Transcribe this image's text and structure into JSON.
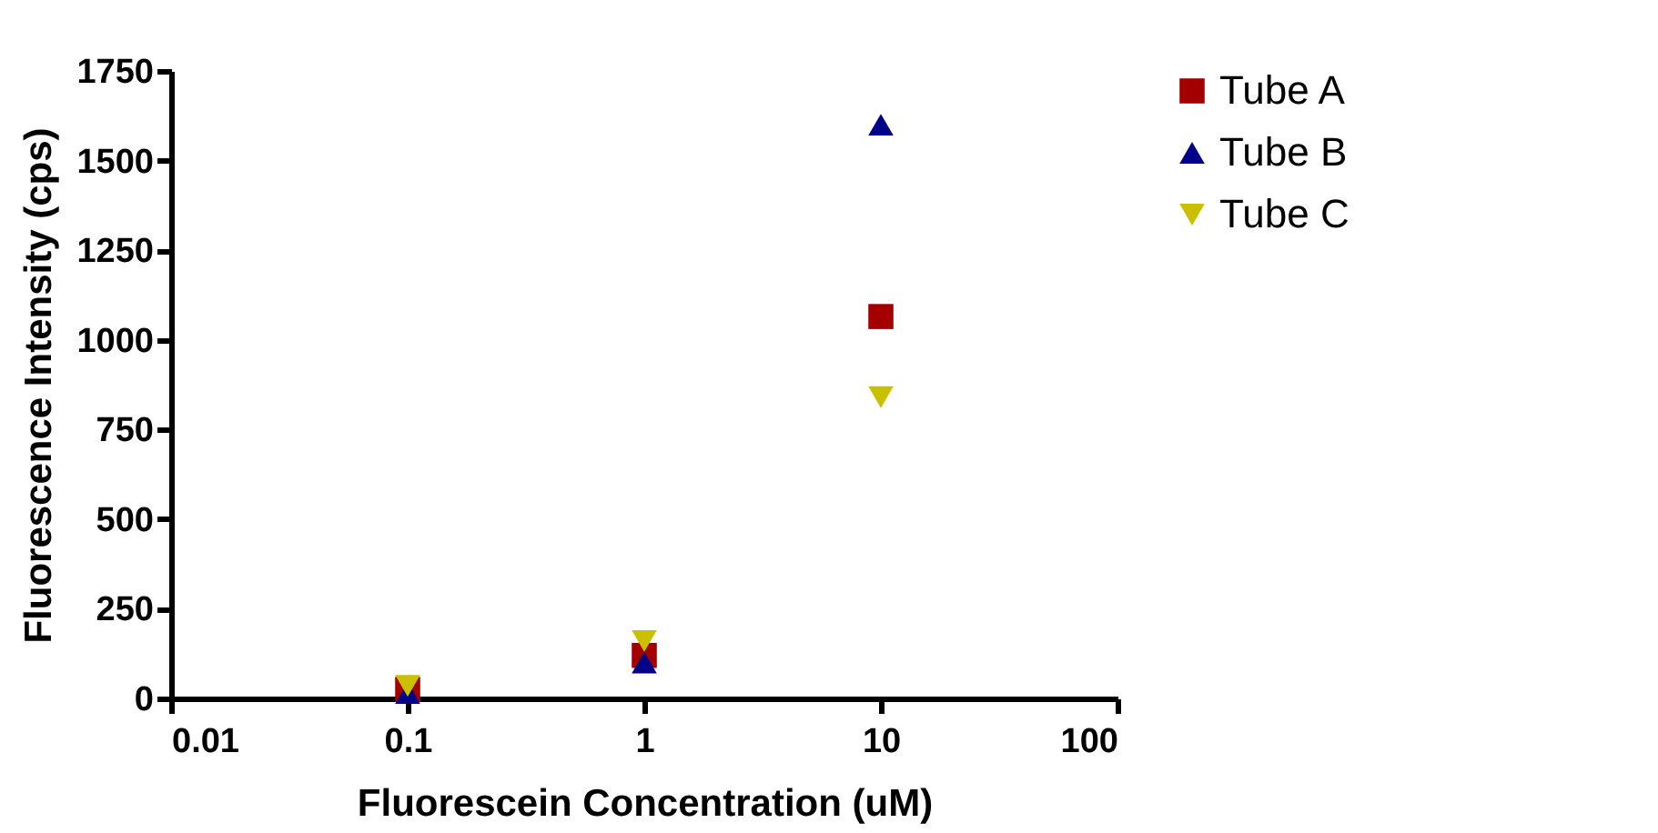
{
  "chart_data": {
    "type": "scatter",
    "xlabel": "Fluorescein Concentration (uM)",
    "ylabel": "Fluorescence Intensity (cps)",
    "x": [
      0.1,
      1,
      10
    ],
    "log": "x",
    "xlim": [
      0.01,
      100
    ],
    "xticks": [
      0.01,
      0.1,
      1,
      10,
      100
    ],
    "ylim": [
      0,
      1750
    ],
    "yticks": [
      0,
      250,
      500,
      750,
      1000,
      1250,
      1500,
      1750
    ],
    "grid": false,
    "legend": "top right",
    "series": [
      {
        "name": "Tube A",
        "color": "#a50000",
        "marker": "square",
        "values": [
          25,
          120,
          1065
        ]
      },
      {
        "name": "Tube B",
        "color": "#000088",
        "marker": "triangle",
        "values": [
          15,
          100,
          1600
        ]
      },
      {
        "name": "Tube C",
        "color": "#c8c000",
        "marker": "triangle-down",
        "values": [
          35,
          160,
          840
        ]
      }
    ]
  }
}
